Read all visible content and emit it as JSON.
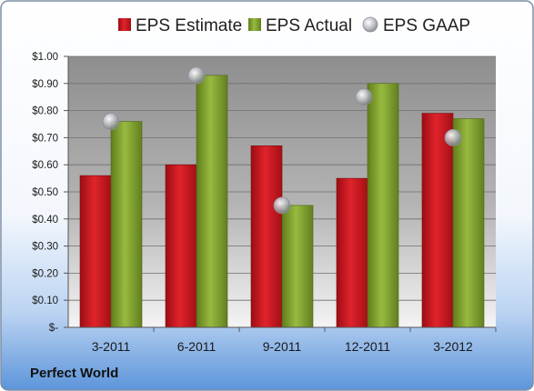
{
  "brand": "Perfect World",
  "colors": {
    "estimate": "#c8141c",
    "actual": "#7e9e2c",
    "gaap": "#b9bcc3",
    "frame_border": "#7f8fa6"
  },
  "chart_data": {
    "type": "bar",
    "categories": [
      "3-2011",
      "6-2011",
      "9-2011",
      "12-2011",
      "3-2012"
    ],
    "series": [
      {
        "name": "EPS Estimate",
        "type": "bar",
        "values": [
          0.56,
          0.6,
          0.67,
          0.55,
          0.79
        ]
      },
      {
        "name": "EPS Actual",
        "type": "bar",
        "values": [
          0.76,
          0.93,
          0.45,
          0.9,
          0.77
        ]
      },
      {
        "name": "EPS GAAP",
        "type": "scatter",
        "values": [
          0.76,
          0.93,
          0.45,
          0.85,
          0.7
        ]
      }
    ],
    "ylim": [
      0,
      1.0
    ],
    "yticks": [
      1.0,
      0.9,
      0.8,
      0.7,
      0.6,
      0.5,
      0.4,
      0.3,
      0.2,
      0.1,
      0
    ],
    "ytick_labels": [
      "$1.00",
      "$0.90",
      "$0.80",
      "$0.70",
      "$0.60",
      "$0.50",
      "$0.40",
      "$0.30",
      "$0.20",
      "$0.10",
      "$-"
    ],
    "grid": true,
    "legend_position": "top"
  }
}
